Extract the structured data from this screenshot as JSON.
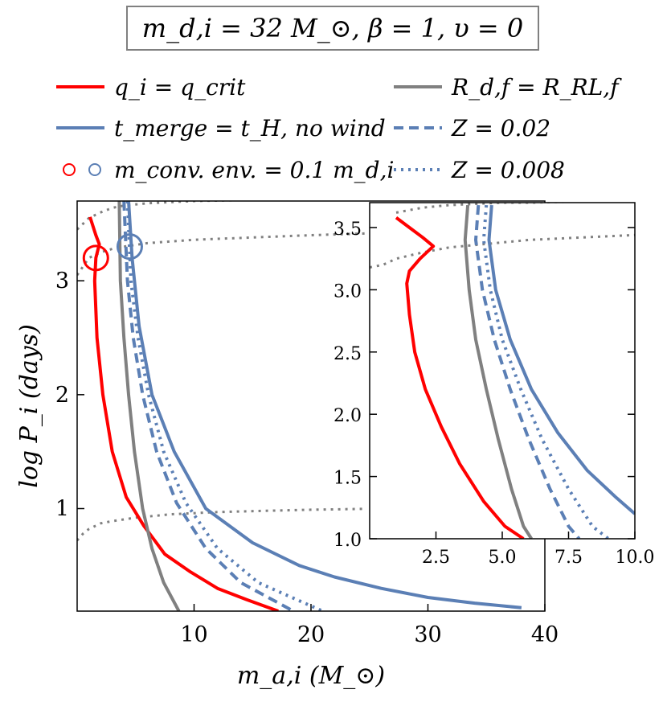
{
  "title": "m_d,i = 32 M_⊙,  β = 1,  υ = 0",
  "colors": {
    "red": "#ff0000",
    "blue": "#5b7fb5",
    "gray": "#808080",
    "axis": "#000000"
  },
  "legend": [
    {
      "label": "q_i = q_crit",
      "color": "#ff0000",
      "style": "solid",
      "marker": "line"
    },
    {
      "label": "t_merge = t_H,  no wind",
      "color": "#5b7fb5",
      "style": "solid",
      "marker": "line"
    },
    {
      "label": "m_conv. env. = 0.1 m_d,i",
      "color": "#ff0000",
      "color2": "#5b7fb5",
      "style": "circle",
      "marker": "circles"
    },
    {
      "label": "R_d,f = R_RL,f",
      "color": "#808080",
      "style": "solid",
      "marker": "line"
    },
    {
      "label": "Z = 0.02",
      "color": "#5b7fb5",
      "style": "dashed",
      "marker": "line"
    },
    {
      "label": "Z = 0.008",
      "color": "#5b7fb5",
      "style": "dotted",
      "marker": "line"
    }
  ],
  "chart_data": [
    {
      "type": "line",
      "panel": "main",
      "xlabel": "m_a,i (M_⊙)",
      "ylabel": "log P_i (days)",
      "xlim": [
        0,
        40
      ],
      "ylim": [
        0.1,
        3.7
      ],
      "xticks": [
        10,
        20,
        30,
        40
      ],
      "yticks": [
        1,
        2,
        3
      ],
      "series": [
        {
          "id": "qcrit",
          "color": "#ff0000",
          "style": "solid",
          "x": [
            1.1,
            1.6,
            1.9,
            1.6,
            1.5,
            1.7,
            2.2,
            3.0,
            4.2,
            5.7,
            7.5,
            9.6,
            12.0,
            14.5,
            17.2
          ],
          "y": [
            3.56,
            3.4,
            3.32,
            3.2,
            3.0,
            2.5,
            2.0,
            1.5,
            1.1,
            0.85,
            0.6,
            0.45,
            0.3,
            0.2,
            0.1
          ]
        },
        {
          "id": "radius",
          "color": "#808080",
          "style": "solid",
          "x": [
            3.6,
            3.7,
            4.0,
            4.4,
            4.9,
            5.6,
            6.4,
            7.4,
            8.7
          ],
          "y": [
            3.7,
            3.0,
            2.5,
            2.0,
            1.5,
            1.0,
            0.65,
            0.35,
            0.1
          ]
        },
        {
          "id": "merge_nowind",
          "color": "#5b7fb5",
          "style": "solid",
          "x": [
            4.4,
            4.7,
            5.3,
            6.4,
            8.3,
            11.0,
            15.0,
            19.0,
            22.0,
            26.0,
            30.0,
            34.0,
            38.0
          ],
          "y": [
            3.7,
            3.2,
            2.6,
            2.0,
            1.5,
            1.0,
            0.7,
            0.5,
            0.4,
            0.3,
            0.22,
            0.17,
            0.13
          ]
        },
        {
          "id": "merge_z002",
          "color": "#5b7fb5",
          "style": "dashed",
          "x": [
            4.0,
            4.3,
            4.8,
            5.6,
            6.8,
            8.5,
            11.0,
            14.0,
            18.5
          ],
          "y": [
            3.7,
            3.0,
            2.5,
            2.0,
            1.5,
            1.05,
            0.65,
            0.35,
            0.1
          ]
        },
        {
          "id": "merge_z0008",
          "color": "#5b7fb5",
          "style": "dotted",
          "x": [
            4.3,
            4.6,
            5.2,
            6.1,
            7.4,
            9.3,
            12.0,
            15.5,
            21.0
          ],
          "y": [
            3.7,
            3.0,
            2.5,
            2.0,
            1.5,
            1.05,
            0.65,
            0.35,
            0.1
          ]
        },
        {
          "id": "wind_upper",
          "color": "#808080",
          "style": "dotted",
          "x": [
            0.0,
            1.0,
            2.0,
            3.0,
            4.0,
            6.0,
            10.0,
            15.0,
            20.0,
            26.0
          ],
          "y": [
            3.45,
            3.55,
            3.6,
            3.64,
            3.66,
            3.68,
            3.7,
            3.71,
            3.72,
            3.73
          ]
        },
        {
          "id": "wind_mid",
          "color": "#808080",
          "style": "dotted",
          "x": [
            0.0,
            1.0,
            2.0,
            3.0,
            4.0,
            6.0,
            10.0,
            15.0,
            20.0,
            26.0
          ],
          "y": [
            3.05,
            3.2,
            3.25,
            3.28,
            3.3,
            3.33,
            3.36,
            3.38,
            3.4,
            3.42
          ]
        },
        {
          "id": "wind_lower",
          "color": "#808080",
          "style": "dotted",
          "x": [
            0.0,
            0.5,
            1.0,
            2.0,
            3.0,
            5.0,
            8.0,
            12.0,
            16.0,
            20.0,
            26.0
          ],
          "y": [
            0.72,
            0.78,
            0.82,
            0.87,
            0.89,
            0.92,
            0.95,
            0.97,
            0.98,
            0.99,
            1.0
          ]
        }
      ],
      "markers": [
        {
          "x": 1.6,
          "y": 3.2,
          "color": "#ff0000",
          "type": "open-circle"
        },
        {
          "x": 4.5,
          "y": 3.3,
          "color": "#5b7fb5",
          "type": "open-circle"
        }
      ]
    },
    {
      "type": "line",
      "panel": "inset",
      "xlim": [
        0,
        10
      ],
      "ylim": [
        1.0,
        3.7
      ],
      "xticks": [
        2.5,
        5.0,
        7.5,
        10.0
      ],
      "yticks": [
        1.0,
        1.5,
        2.0,
        2.5,
        3.0,
        3.5
      ],
      "series": [
        {
          "id": "qcrit",
          "color": "#ff0000",
          "style": "solid",
          "x": [
            1.0,
            1.5,
            2.0,
            2.4,
            1.9,
            1.5,
            1.4,
            1.5,
            1.7,
            2.1,
            2.7,
            3.4,
            4.3,
            5.1,
            5.8
          ],
          "y": [
            3.58,
            3.5,
            3.42,
            3.35,
            3.25,
            3.15,
            3.05,
            2.8,
            2.5,
            2.2,
            1.9,
            1.6,
            1.3,
            1.1,
            1.0
          ]
        },
        {
          "id": "radius",
          "color": "#808080",
          "style": "solid",
          "x": [
            3.7,
            3.6,
            3.75,
            4.0,
            4.4,
            4.85,
            5.35,
            5.8,
            6.1
          ],
          "y": [
            3.68,
            3.4,
            3.0,
            2.6,
            2.2,
            1.8,
            1.4,
            1.1,
            1.0
          ]
        },
        {
          "id": "merge_nowind",
          "color": "#5b7fb5",
          "style": "solid",
          "x": [
            4.6,
            4.5,
            4.75,
            5.3,
            6.1,
            7.1,
            8.2,
            9.3,
            10.0
          ],
          "y": [
            3.68,
            3.4,
            3.0,
            2.6,
            2.2,
            1.85,
            1.55,
            1.33,
            1.2
          ]
        },
        {
          "id": "merge_z002",
          "color": "#5b7fb5",
          "style": "dashed",
          "x": [
            4.1,
            4.0,
            4.25,
            4.7,
            5.3,
            6.0,
            6.8,
            7.5,
            7.9
          ],
          "y": [
            3.68,
            3.4,
            3.0,
            2.6,
            2.2,
            1.8,
            1.4,
            1.1,
            1.0
          ]
        },
        {
          "id": "merge_z0008",
          "color": "#5b7fb5",
          "style": "dotted",
          "x": [
            4.4,
            4.3,
            4.55,
            5.0,
            5.7,
            6.5,
            7.5,
            8.4,
            9.0
          ],
          "y": [
            3.68,
            3.4,
            3.0,
            2.6,
            2.2,
            1.8,
            1.4,
            1.1,
            1.0
          ]
        },
        {
          "id": "wind_upper",
          "color": "#808080",
          "style": "dotted",
          "x": [
            0.0,
            0.5,
            1.0,
            2.0,
            3.0,
            4.0,
            5.0,
            6.0,
            8.0,
            10.0
          ],
          "y": [
            3.18,
            3.2,
            3.25,
            3.3,
            3.34,
            3.36,
            3.38,
            3.4,
            3.42,
            3.44
          ]
        },
        {
          "id": "wind_top",
          "color": "#808080",
          "style": "dotted",
          "x": [
            1.0,
            2.0,
            3.0,
            4.0,
            5.0,
            6.0,
            8.0,
            10.0
          ],
          "y": [
            3.62,
            3.66,
            3.68,
            3.69,
            3.7,
            3.7,
            3.71,
            3.72
          ]
        }
      ]
    }
  ]
}
